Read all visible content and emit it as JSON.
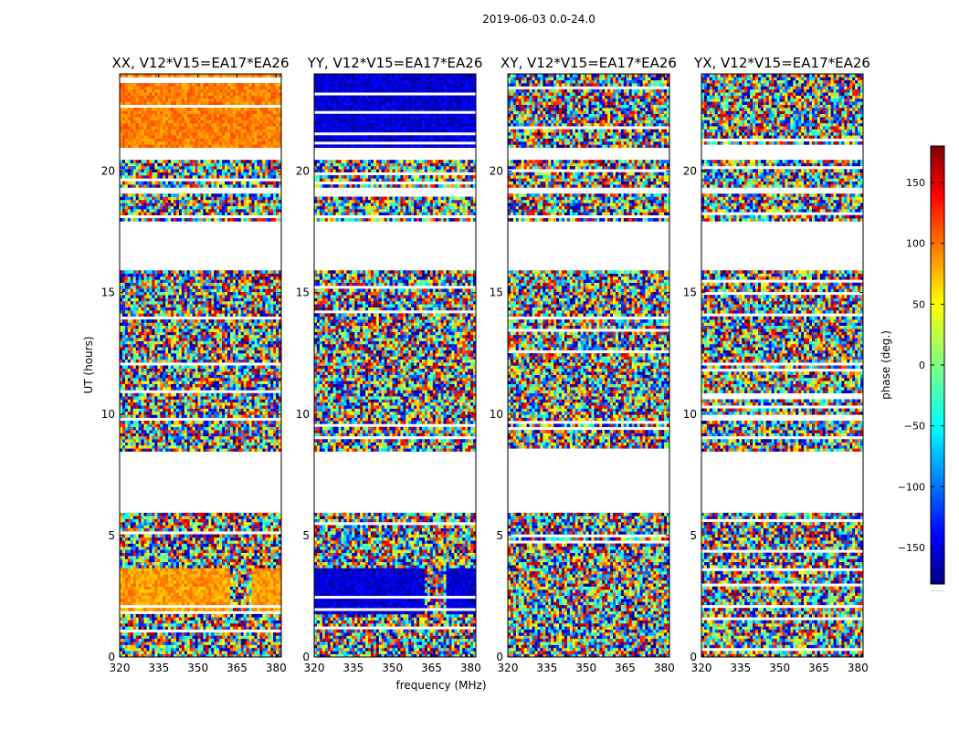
{
  "chart_data": {
    "type": "heatmap",
    "suptitle": "2019-06-03 0.0-24.0",
    "xlabel": "frequency (MHz)",
    "ylabel": "UT (hours)",
    "xlim": [
      320,
      382
    ],
    "ylim": [
      0,
      24
    ],
    "xticks": [
      320,
      335,
      350,
      365,
      380
    ],
    "yticks": [
      0,
      5,
      10,
      15,
      20
    ],
    "panels": [
      {
        "title": "XX, V12*V15=EA17*EA26",
        "pol": "XX"
      },
      {
        "title": "YY, V12*V15=EA17*EA26",
        "pol": "YY"
      },
      {
        "title": "XY, V12*V15=EA17*EA26",
        "pol": "XY"
      },
      {
        "title": "YX, V12*V15=EA17*EA26",
        "pol": "YX"
      }
    ],
    "colorbar": {
      "label": "phase (deg.)",
      "range": [
        -180,
        180
      ],
      "ticks": [
        150,
        100,
        50,
        0,
        -50,
        -100,
        -150
      ],
      "colormap": "jet",
      "offscale_marker": "......"
    },
    "data_gaps_hours": [
      [
        6.0,
        8.45
      ],
      [
        15.9,
        17.95
      ],
      [
        19.1,
        19.35
      ],
      [
        20.45,
        20.95
      ]
    ],
    "coherent_phase_blocks": [
      {
        "pol": "XX",
        "ut": [
          1.8,
          3.7
        ],
        "phase_deg": 80,
        "freq_break_mhz": 362
      },
      {
        "pol": "YY",
        "ut": [
          1.8,
          3.7
        ],
        "phase_deg": -150,
        "freq_break_mhz": 362
      },
      {
        "pol": "XX",
        "ut": [
          20.95,
          24.0
        ],
        "phase_deg": 90
      },
      {
        "pol": "YY",
        "ut": [
          20.95,
          24.0
        ],
        "phase_deg": -150
      }
    ]
  }
}
